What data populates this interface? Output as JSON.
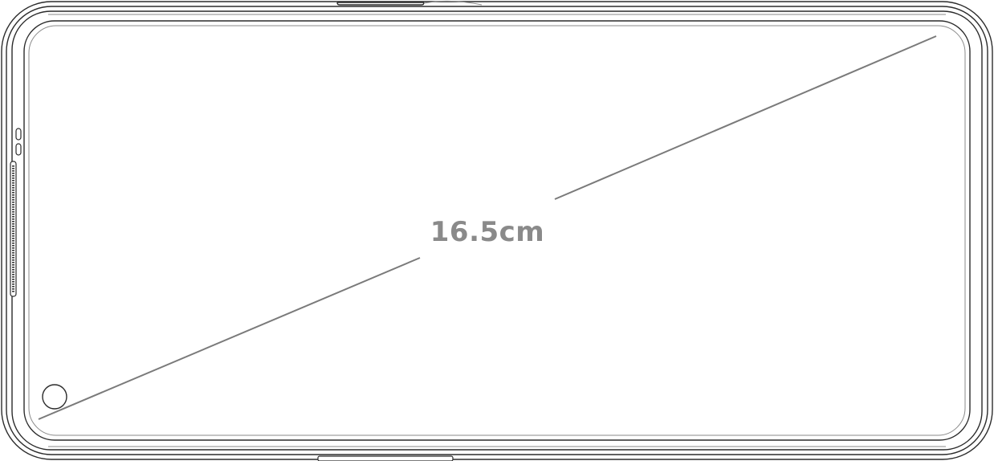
{
  "diagram": {
    "diagonal_label": "16.5cm",
    "label_color": "#8a8a8a",
    "line_color": "#7a7a7a",
    "outline_color": "#2b2b2b"
  }
}
